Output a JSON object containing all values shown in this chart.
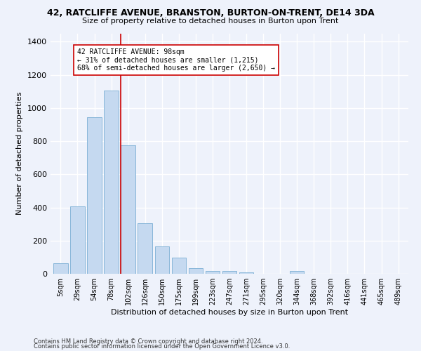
{
  "title1": "42, RATCLIFFE AVENUE, BRANSTON, BURTON-ON-TRENT, DE14 3DA",
  "title2": "Size of property relative to detached houses in Burton upon Trent",
  "xlabel": "Distribution of detached houses by size in Burton upon Trent",
  "ylabel": "Number of detached properties",
  "categories": [
    "5sqm",
    "29sqm",
    "54sqm",
    "78sqm",
    "102sqm",
    "126sqm",
    "150sqm",
    "175sqm",
    "199sqm",
    "223sqm",
    "247sqm",
    "271sqm",
    "295sqm",
    "320sqm",
    "344sqm",
    "368sqm",
    "392sqm",
    "416sqm",
    "441sqm",
    "465sqm",
    "489sqm"
  ],
  "values": [
    65,
    405,
    945,
    1105,
    775,
    305,
    165,
    98,
    35,
    18,
    18,
    10,
    0,
    0,
    18,
    0,
    0,
    0,
    0,
    0,
    0
  ],
  "bar_color": "#c5d9f0",
  "bar_edge_color": "#7bafd4",
  "vline_bar_index": 4,
  "vline_color": "#cc0000",
  "annotation_text": "42 RATCLIFFE AVENUE: 98sqm\n← 31% of detached houses are smaller (1,215)\n68% of semi-detached houses are larger (2,650) →",
  "annotation_box_color": "#ffffff",
  "annotation_box_edge": "#cc0000",
  "ylim": [
    0,
    1450
  ],
  "yticks": [
    0,
    200,
    400,
    600,
    800,
    1000,
    1200,
    1400
  ],
  "footnote1": "Contains HM Land Registry data © Crown copyright and database right 2024.",
  "footnote2": "Contains public sector information licensed under the Open Government Licence v3.0.",
  "bg_color": "#eef2fb",
  "grid_color": "#ffffff",
  "title1_fontsize": 9,
  "title2_fontsize": 8,
  "xlabel_fontsize": 8,
  "ylabel_fontsize": 8,
  "footnote_fontsize": 6,
  "tick_fontsize": 7,
  "ytick_fontsize": 8,
  "annotation_fontsize": 7
}
